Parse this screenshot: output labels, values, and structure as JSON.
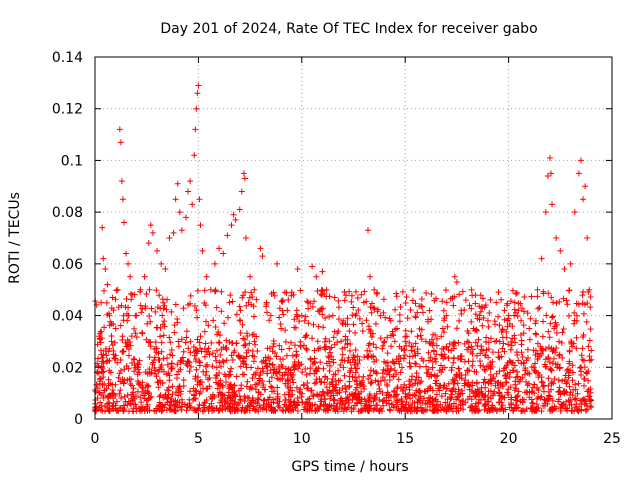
{
  "chart_data": {
    "type": "scatter",
    "title": "Day 201 of 2024, Rate Of TEC Index for receiver gabo",
    "xlabel": "GPS time / hours",
    "ylabel": "ROTI / TECUs",
    "xlim": [
      0,
      25
    ],
    "ylim": [
      0,
      0.14
    ],
    "x_ticks": [
      0,
      5,
      10,
      15,
      20,
      25
    ],
    "x_tick_labels": [
      "0",
      "5",
      "10",
      "15",
      "20",
      "25"
    ],
    "y_ticks": [
      0,
      0.02,
      0.04,
      0.06,
      0.08,
      0.1,
      0.12,
      0.14
    ],
    "y_tick_labels": [
      "0",
      "0.02",
      "0.04",
      "0.06",
      "0.08",
      "0.1",
      "0.12",
      "0.14"
    ],
    "grid": true,
    "marker": "+",
    "series": [
      {
        "name": "ROTI",
        "color": "#ff0000",
        "points": [
          [
            0.1,
            0.018
          ],
          [
            0.2,
            0.032
          ],
          [
            0.3,
            0.045
          ],
          [
            0.35,
            0.074
          ],
          [
            0.4,
            0.062
          ],
          [
            0.5,
            0.058
          ],
          [
            0.6,
            0.052
          ],
          [
            0.7,
            0.04
          ],
          [
            0.8,
            0.03
          ],
          [
            0.9,
            0.025
          ],
          [
            1.0,
            0.035
          ],
          [
            1.1,
            0.05
          ],
          [
            1.2,
            0.112
          ],
          [
            1.25,
            0.107
          ],
          [
            1.3,
            0.092
          ],
          [
            1.35,
            0.085
          ],
          [
            1.4,
            0.076
          ],
          [
            1.5,
            0.064
          ],
          [
            1.6,
            0.06
          ],
          [
            1.7,
            0.055
          ],
          [
            1.8,
            0.048
          ],
          [
            2.0,
            0.04
          ],
          [
            2.2,
            0.05
          ],
          [
            2.4,
            0.055
          ],
          [
            2.6,
            0.068
          ],
          [
            2.7,
            0.075
          ],
          [
            2.8,
            0.072
          ],
          [
            3.0,
            0.065
          ],
          [
            3.2,
            0.06
          ],
          [
            3.4,
            0.058
          ],
          [
            3.6,
            0.07
          ],
          [
            3.8,
            0.072
          ],
          [
            3.9,
            0.085
          ],
          [
            4.0,
            0.091
          ],
          [
            4.1,
            0.08
          ],
          [
            4.2,
            0.073
          ],
          [
            4.4,
            0.078
          ],
          [
            4.5,
            0.088
          ],
          [
            4.6,
            0.092
          ],
          [
            4.7,
            0.083
          ],
          [
            4.8,
            0.102
          ],
          [
            4.85,
            0.112
          ],
          [
            4.9,
            0.12
          ],
          [
            4.95,
            0.126
          ],
          [
            5.0,
            0.129
          ],
          [
            5.05,
            0.085
          ],
          [
            5.1,
            0.075
          ],
          [
            5.2,
            0.065
          ],
          [
            5.4,
            0.055
          ],
          [
            5.6,
            0.05
          ],
          [
            5.8,
            0.06
          ],
          [
            6.0,
            0.066
          ],
          [
            6.2,
            0.064
          ],
          [
            6.4,
            0.071
          ],
          [
            6.6,
            0.075
          ],
          [
            6.7,
            0.079
          ],
          [
            6.8,
            0.077
          ],
          [
            7.0,
            0.081
          ],
          [
            7.1,
            0.088
          ],
          [
            7.2,
            0.095
          ],
          [
            7.25,
            0.093
          ],
          [
            7.3,
            0.07
          ],
          [
            7.5,
            0.055
          ],
          [
            7.7,
            0.05
          ],
          [
            8.0,
            0.066
          ],
          [
            8.1,
            0.063
          ],
          [
            8.3,
            0.045
          ],
          [
            8.5,
            0.04
          ],
          [
            8.8,
            0.06
          ],
          [
            9.0,
            0.035
          ],
          [
            9.3,
            0.042
          ],
          [
            9.6,
            0.048
          ],
          [
            9.8,
            0.058
          ],
          [
            10.0,
            0.04
          ],
          [
            10.3,
            0.045
          ],
          [
            10.5,
            0.059
          ],
          [
            10.7,
            0.055
          ],
          [
            11.0,
            0.057
          ],
          [
            11.2,
            0.05
          ],
          [
            11.5,
            0.04
          ],
          [
            12.0,
            0.038
          ],
          [
            12.3,
            0.034
          ],
          [
            12.6,
            0.04
          ],
          [
            13.0,
            0.045
          ],
          [
            13.2,
            0.073
          ],
          [
            13.3,
            0.055
          ],
          [
            13.5,
            0.05
          ],
          [
            13.8,
            0.04
          ],
          [
            14.0,
            0.03
          ],
          [
            14.3,
            0.038
          ],
          [
            14.6,
            0.035
          ],
          [
            15.0,
            0.03
          ],
          [
            15.3,
            0.028
          ],
          [
            15.6,
            0.032
          ],
          [
            16.0,
            0.03
          ],
          [
            16.5,
            0.025
          ],
          [
            17.0,
            0.028
          ],
          [
            17.4,
            0.055
          ],
          [
            17.5,
            0.053
          ],
          [
            18.0,
            0.03
          ],
          [
            18.3,
            0.035
          ],
          [
            18.6,
            0.04
          ],
          [
            19.0,
            0.038
          ],
          [
            19.4,
            0.045
          ],
          [
            19.8,
            0.042
          ],
          [
            20.0,
            0.04
          ],
          [
            20.3,
            0.045
          ],
          [
            20.6,
            0.038
          ],
          [
            21.0,
            0.035
          ],
          [
            21.4,
            0.05
          ],
          [
            21.6,
            0.062
          ],
          [
            21.8,
            0.08
          ],
          [
            21.9,
            0.094
          ],
          [
            22.0,
            0.101
          ],
          [
            22.05,
            0.095
          ],
          [
            22.1,
            0.083
          ],
          [
            22.3,
            0.07
          ],
          [
            22.5,
            0.065
          ],
          [
            22.7,
            0.058
          ],
          [
            23.0,
            0.06
          ],
          [
            23.2,
            0.08
          ],
          [
            23.4,
            0.095
          ],
          [
            23.5,
            0.1
          ],
          [
            23.6,
            0.085
          ],
          [
            23.7,
            0.09
          ],
          [
            23.8,
            0.07
          ],
          [
            23.9,
            0.05
          ]
        ]
      }
    ],
    "background_band": {
      "description": "dense cluster of points covering the whole day",
      "y_min": 0.003,
      "y_max": 0.03
    }
  }
}
